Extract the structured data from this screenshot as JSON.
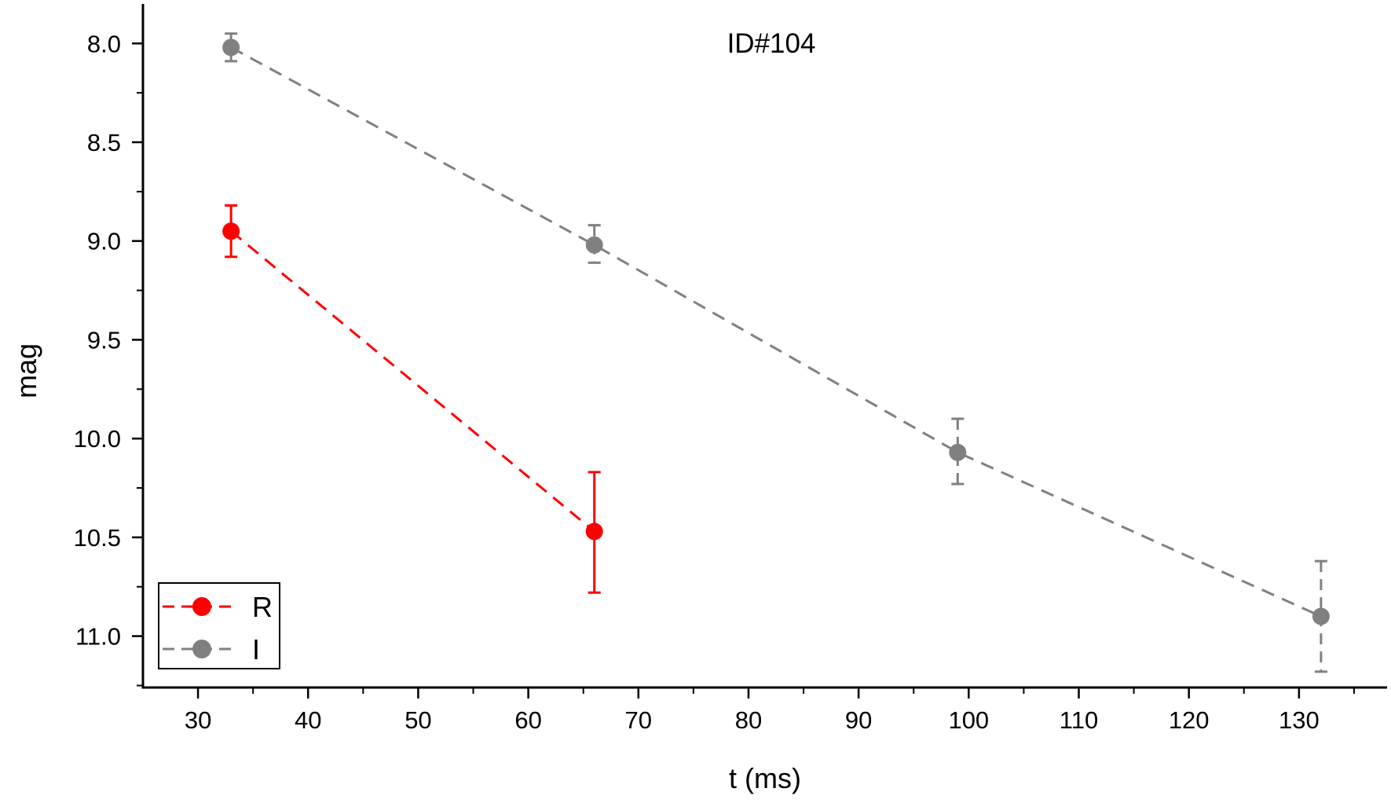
{
  "chart_data": {
    "type": "scatter",
    "title": "ID#104",
    "xlabel": "t (ms)",
    "ylabel": "mag",
    "xlim": [
      25,
      138
    ],
    "ylim": [
      11.26,
      7.8
    ],
    "y_inverted": true,
    "x_ticks": [
      30,
      40,
      50,
      60,
      70,
      80,
      90,
      100,
      110,
      120,
      130
    ],
    "x_tick_labels": [
      "30",
      "40",
      "50",
      "60",
      "70",
      "80",
      "90",
      "100",
      "110",
      "120",
      "130"
    ],
    "y_ticks": [
      8.0,
      8.5,
      9.0,
      9.5,
      10.0,
      10.5,
      11.0
    ],
    "y_tick_labels": [
      "8.0",
      "8.5",
      "9.0",
      "9.5",
      "10.0",
      "10.5",
      "11.0"
    ],
    "grid": false,
    "legend_position": "bottom-left",
    "line_style": "dashed",
    "series": [
      {
        "name": "R",
        "color": "#ff0000",
        "points": [
          {
            "x": 33,
            "y": 8.95,
            "err_low": 8.82,
            "err_high": 9.08
          },
          {
            "x": 66,
            "y": 10.47,
            "err_low": 10.17,
            "err_high": 10.78
          }
        ]
      },
      {
        "name": "I",
        "color": "#808080",
        "points": [
          {
            "x": 33,
            "y": 8.02,
            "err_low": 7.95,
            "err_high": 8.09
          },
          {
            "x": 66,
            "y": 9.02,
            "err_low": 8.92,
            "err_high": 9.11
          },
          {
            "x": 99,
            "y": 10.07,
            "err_low": 9.9,
            "err_high": 10.23
          },
          {
            "x": 132,
            "y": 10.9,
            "err_low": 10.62,
            "err_high": 11.18
          }
        ]
      }
    ]
  }
}
